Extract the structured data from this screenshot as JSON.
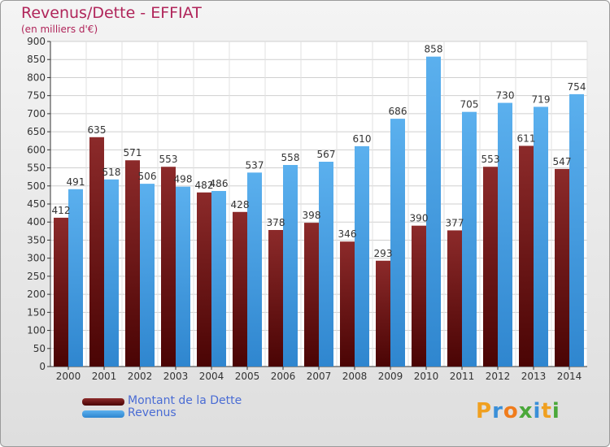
{
  "title": "Revenus/Dette - EFFIAT",
  "subtitle": "(en milliers d'€)",
  "colors": {
    "dette": "#7a1c1c",
    "revenus": "#4aa3e6",
    "title": "#b0255a",
    "legend_text": "#4a6cd4"
  },
  "logo": {
    "text": "Proxiti",
    "letters": [
      {
        "ch": "P",
        "color": "#f0a020"
      },
      {
        "ch": "r",
        "color": "#3a8fd8"
      },
      {
        "ch": "o",
        "color": "#f07c1c"
      },
      {
        "ch": "x",
        "color": "#4aa83a"
      },
      {
        "ch": "i",
        "color": "#3a8fd8"
      },
      {
        "ch": "t",
        "color": "#f0a020"
      },
      {
        "ch": "i",
        "color": "#4aa83a"
      }
    ]
  },
  "chart_data": {
    "type": "bar",
    "categories": [
      "2000",
      "2001",
      "2002",
      "2003",
      "2004",
      "2005",
      "2006",
      "2007",
      "2008",
      "2009",
      "2010",
      "2011",
      "2012",
      "2013",
      "2014"
    ],
    "series": [
      {
        "name": "Montant de la Dette",
        "values": [
          412,
          635,
          571,
          553,
          482,
          428,
          378,
          398,
          346,
          293,
          390,
          377,
          553,
          611,
          547
        ]
      },
      {
        "name": "Revenus",
        "values": [
          491,
          518,
          506,
          498,
          486,
          537,
          558,
          567,
          610,
          686,
          858,
          705,
          730,
          719,
          754
        ]
      }
    ],
    "ylim": [
      0,
      900
    ],
    "yticks": [
      0,
      50,
      100,
      150,
      200,
      250,
      300,
      350,
      400,
      450,
      500,
      550,
      600,
      650,
      700,
      750,
      800,
      850,
      900
    ],
    "grid": true,
    "legend": "bottom-left"
  }
}
